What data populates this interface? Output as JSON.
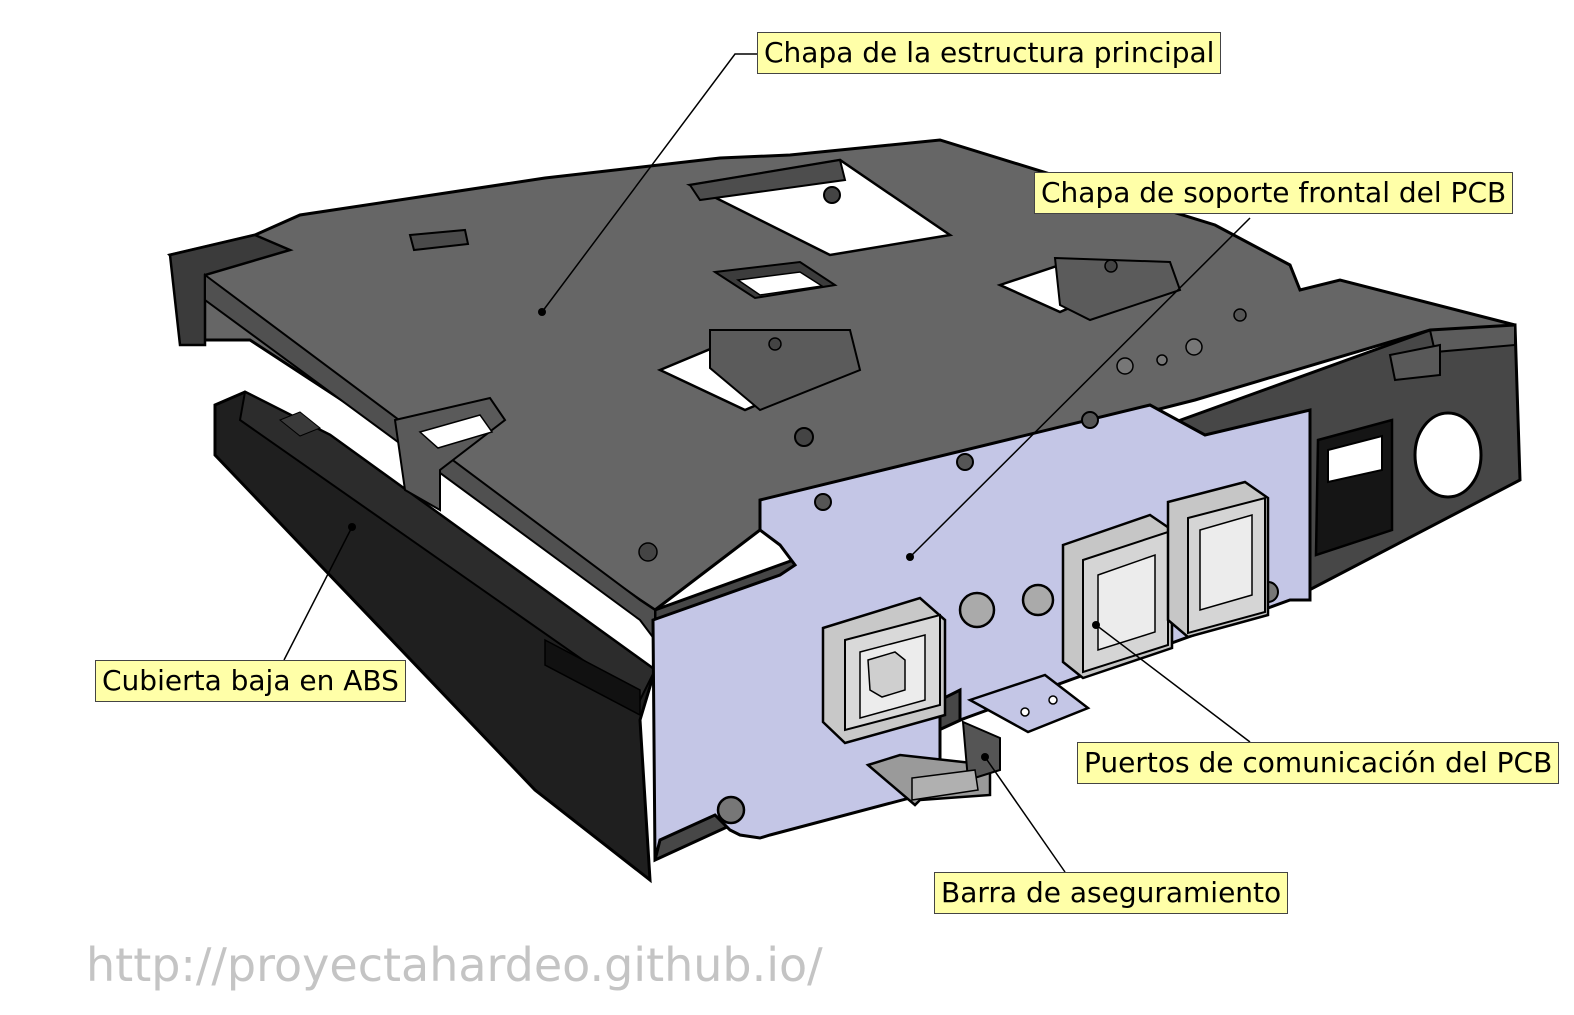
{
  "labels": {
    "main_frame": "Chapa de la estructura principal",
    "front_support": "Chapa de soporte frontal del PCB",
    "lower_cover": "Cubierta baja en ABS",
    "ports": "Puertos de comunicación del PCB",
    "locking_bar": "Barra de aseguramiento"
  },
  "watermark": "http://proyectahardeo.github.io/",
  "colors": {
    "label_background": "#ffffa8",
    "frame_top": "#656565",
    "frame_side": "#4a4a4a",
    "abs_cover": "#232323",
    "front_plate": "#c4c6e6",
    "port": "#c8c8c8",
    "watermark": "#c4c4c4"
  }
}
